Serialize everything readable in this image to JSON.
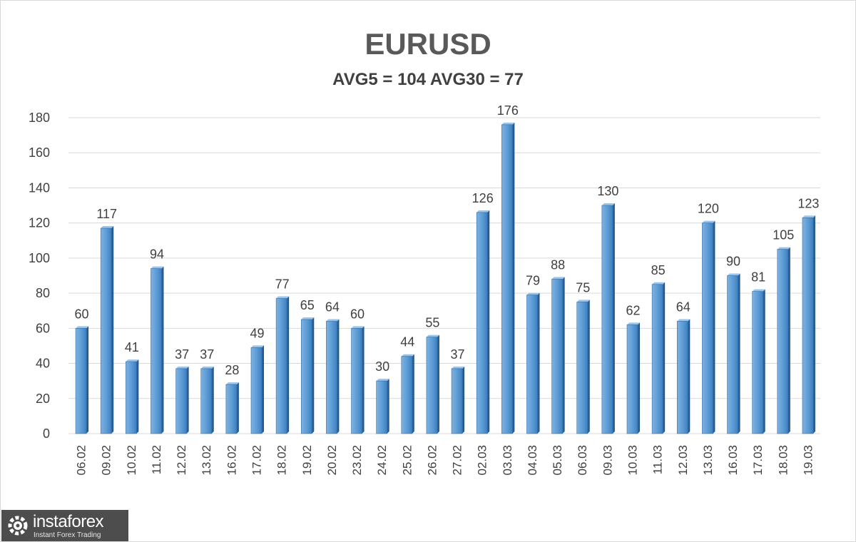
{
  "chart_data": {
    "type": "bar",
    "title": "EURUSD",
    "subtitle": "AVG5 = 104 AVG30 = 77",
    "categories": [
      "06.02",
      "09.02",
      "10.02",
      "11.02",
      "12.02",
      "13.02",
      "16.02",
      "17.02",
      "18.02",
      "19.02",
      "20.02",
      "23.02",
      "24.02",
      "25.02",
      "26.02",
      "27.02",
      "02.03",
      "03.03",
      "04.03",
      "05.03",
      "06.03",
      "09.03",
      "10.03",
      "11.03",
      "12.03",
      "13.03",
      "16.03",
      "17.03",
      "18.03",
      "19.03"
    ],
    "values": [
      60,
      117,
      41,
      94,
      37,
      37,
      28,
      49,
      77,
      65,
      64,
      60,
      30,
      44,
      55,
      37,
      126,
      176,
      79,
      88,
      75,
      130,
      62,
      85,
      64,
      120,
      90,
      81,
      105,
      123
    ],
    "yticks": [
      0,
      20,
      40,
      60,
      80,
      100,
      120,
      140,
      160,
      180
    ],
    "ylim": [
      0,
      180
    ],
    "xlabel": "",
    "ylabel": "",
    "grid": true,
    "legend": "none",
    "data_labels": true,
    "bar_color": "#5b9bd5"
  },
  "logo": {
    "name": "instaforex",
    "tagline": "Instant Forex Trading"
  }
}
